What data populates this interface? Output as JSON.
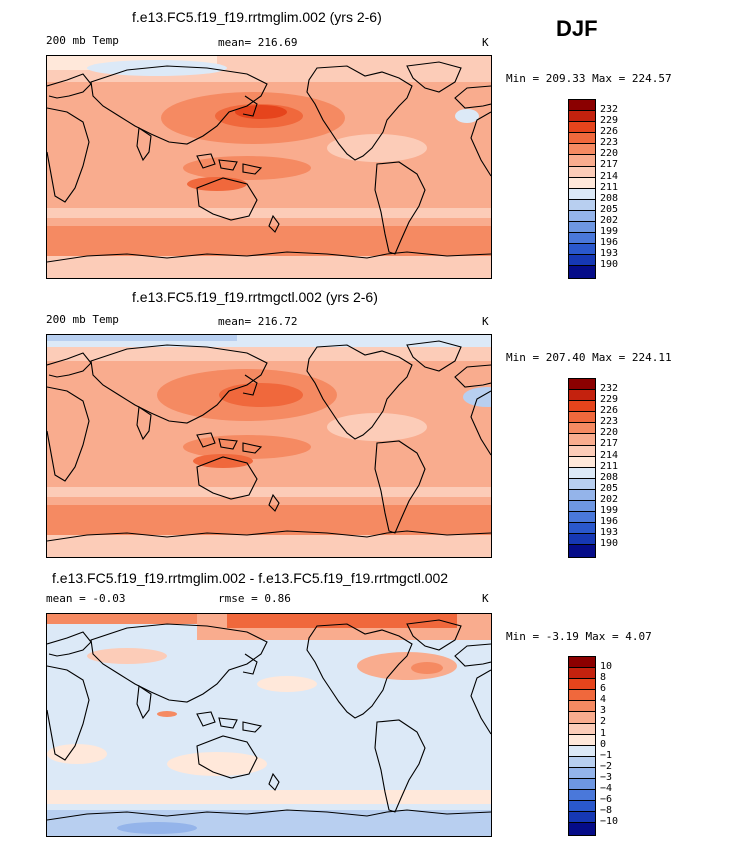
{
  "season": "DJF",
  "colors": [
    "#8b0000",
    "#c4220e",
    "#e6441c",
    "#f0683c",
    "#f58a62",
    "#f9ac8e",
    "#fcccb8",
    "#ffe8da",
    "#dce9f7",
    "#b8cff0",
    "#94b4ea",
    "#6e97e2",
    "#4a78da",
    "#2a58cc",
    "#1638b4",
    "#050c88"
  ],
  "panels": [
    {
      "title": "f.e13.FC5.f19_f19.rrtmglim.002 (yrs 2-6)",
      "left_label": "200 mb Temp",
      "center_label": "mean= 216.69",
      "units": "K",
      "minmax": "Min = 209.33 Max = 224.57",
      "levels": [
        "232",
        "229",
        "226",
        "223",
        "220",
        "217",
        "214",
        "211",
        "208",
        "205",
        "202",
        "199",
        "196",
        "193",
        "190"
      ]
    },
    {
      "title": "f.e13.FC5.f19_f19.rrtmgctl.002 (yrs 2-6)",
      "left_label": "200 mb Temp",
      "center_label": "mean= 216.72",
      "units": "K",
      "minmax": "Min = 207.40 Max = 224.11",
      "levels": [
        "232",
        "229",
        "226",
        "223",
        "220",
        "217",
        "214",
        "211",
        "208",
        "205",
        "202",
        "199",
        "196",
        "193",
        "190"
      ]
    },
    {
      "title": "f.e13.FC5.f19_f19.rrtmglim.002 - f.e13.FC5.f19_f19.rrtmgctl.002",
      "left_label": "mean =   -0.03",
      "center_label": "rmse =    0.86",
      "units": "K",
      "minmax": "Min =  -3.19 Max =   4.07",
      "levels": [
        "10",
        "8",
        "6",
        "4",
        "3",
        "2",
        "1",
        "0",
        "−1",
        "−2",
        "−3",
        "−4",
        "−6",
        "−8",
        "−10"
      ]
    }
  ]
}
